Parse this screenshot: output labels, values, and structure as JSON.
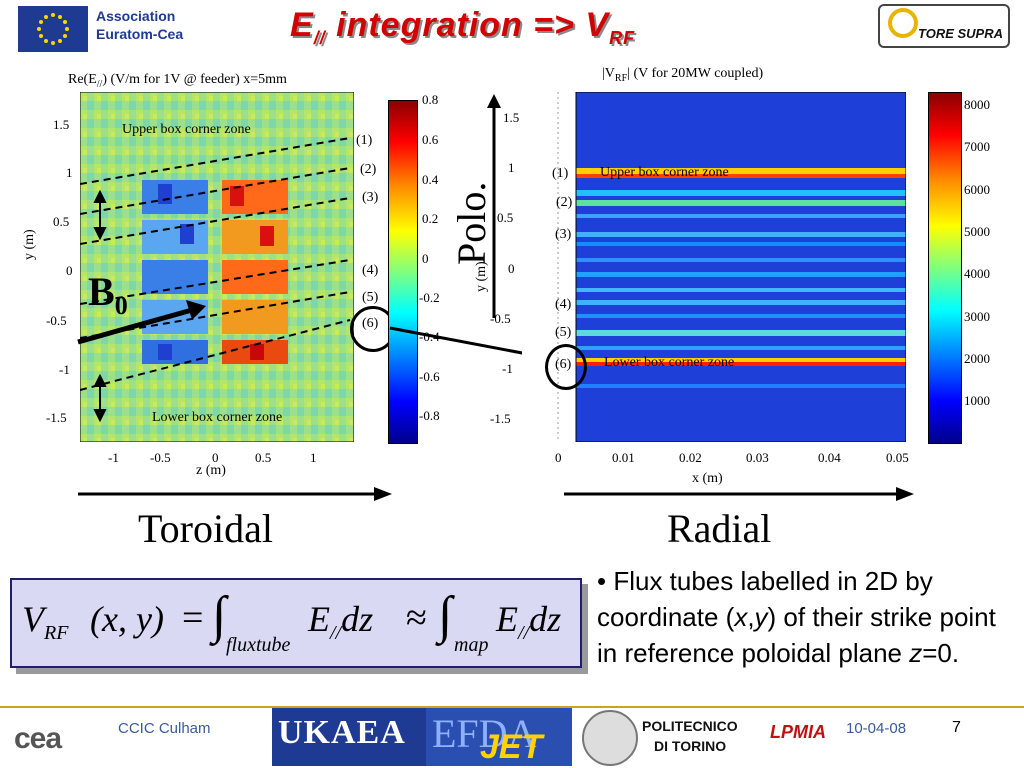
{
  "header": {
    "association_line1": "Association",
    "association_line2": "Euratom-Cea",
    "title_main": "E",
    "title_sub": "//",
    "title_rest": " integration => V",
    "title_sub2": "RF",
    "logo_text": "TORE SUPRA"
  },
  "left_plot": {
    "title_prefix": "Re(E",
    "title_sub": "//",
    "title_suffix": ") (V/m for 1V @ feeder) x=5mm",
    "ylabel": "y (m)",
    "xlabel": "z (m)",
    "yticks": [
      "1.5",
      "1",
      "0.5",
      "0",
      "-0.5",
      "-1",
      "-1.5"
    ],
    "xticks": [
      "-1",
      "-0.5",
      "0",
      "0.5",
      "1"
    ],
    "upper_zone": "Upper box corner zone",
    "lower_zone": "Lower box corner zone",
    "b_label": "B",
    "b_sub": "0",
    "tubes": [
      "(1)",
      "(2)",
      "(3)",
      "(4)",
      "(5)",
      "(6)"
    ],
    "colorbar_ticks": [
      "0.8",
      "0.6",
      "0.4",
      "0.2",
      "0",
      "-0.2",
      "-0.4",
      "-0.6",
      "-0.8"
    ]
  },
  "right_plot": {
    "title_prefix": "|V",
    "title_sub": "RF",
    "title_suffix": "| (V for 20MW coupled)",
    "ylabel": "y (m)",
    "xlabel": "x (m)",
    "yticks": [
      "1.5",
      "1",
      "0.5",
      "0",
      "-0.5",
      "-1",
      "-1.5"
    ],
    "xticks": [
      "0",
      "0.01",
      "0.02",
      "0.03",
      "0.04",
      "0.05"
    ],
    "upper_zone": "Upper box corner zone",
    "lower_zone": "Lower box corner zone",
    "tubes": [
      "(1)",
      "(2)",
      "(3)",
      "(4)",
      "(5)",
      "(6)"
    ],
    "colorbar_ticks": [
      "8000",
      "7000",
      "6000",
      "5000",
      "4000",
      "3000",
      "2000",
      "1000"
    ],
    "polo_label": "Polo."
  },
  "axes_words": {
    "toroidal": "Toroidal",
    "radial": "Radial"
  },
  "formula": {
    "lhs_v": "V",
    "lhs_sub": "RF",
    "lhs_args": "(x, y)",
    "eq": "=",
    "int1_sub": "fluxtube",
    "e1": "E",
    "e_sub": "//",
    "dz": "dz",
    "approx": "≈",
    "int2_sub": "map"
  },
  "bullet": {
    "part1": "• Flux tubes labelled in 2D by coordinate (",
    "x": "x",
    "comma": ",",
    "y": "y",
    "part2": ") of their strike point in reference poloidal plane ",
    "z": "z",
    "part3": "=0."
  },
  "footer": {
    "cea": "cea",
    "ccic": "CCIC Culham",
    "ukaea": "UKAEA",
    "efda": "EFDA",
    "jet": "JET",
    "polito1": "POLITECNICO",
    "polito2": "DI TORINO",
    "lpmia": "LPMIA",
    "date": "10-04-08",
    "page": "7"
  }
}
